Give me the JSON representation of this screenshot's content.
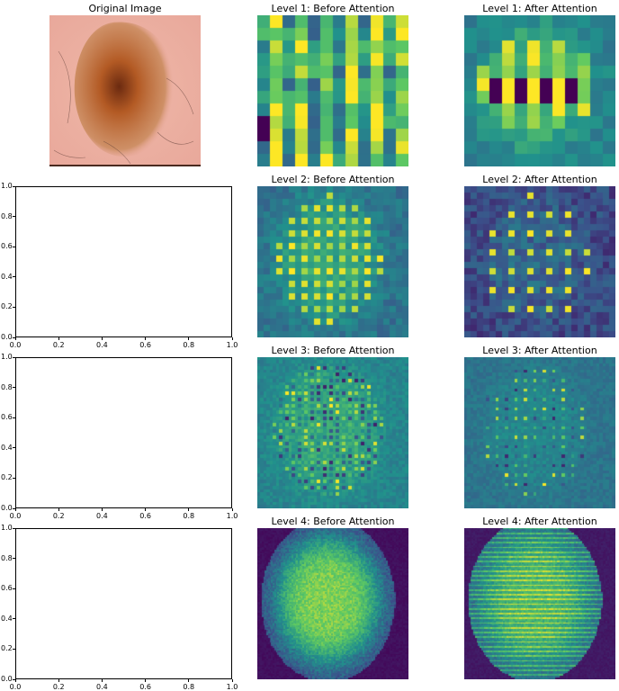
{
  "original_title": "Original Image",
  "heatmap_titles": [
    "Level 1: Before Attention",
    "Level 1: After Attention",
    "Level 2: Before Attention",
    "Level 2: After Attention",
    "Level 3: Before Attention",
    "Level 3: After Attention",
    "Level 4: Before Attention",
    "Level 4: After Attention"
  ],
  "colormap": [
    "#440154",
    "#3b528b",
    "#21918c",
    "#5ec962",
    "#fde725"
  ],
  "original_image": {
    "skin_color": "#e8a79a",
    "lesion_color": "#b35a24",
    "lesion_core_color": "#6b2a10"
  },
  "chart_data": [
    {
      "type": "heatmap",
      "name": "Level 1: Before Attention",
      "grid": [
        12,
        12
      ]
    },
    {
      "type": "heatmap",
      "name": "Level 1: After Attention",
      "grid": [
        12,
        12
      ]
    },
    {
      "type": "heatmap",
      "name": "Level 2: Before Attention",
      "grid": [
        24,
        24
      ]
    },
    {
      "type": "heatmap",
      "name": "Level 2: After Attention",
      "grid": [
        24,
        24
      ]
    },
    {
      "type": "heatmap",
      "name": "Level 3: Before Attention",
      "grid": [
        48,
        48
      ]
    },
    {
      "type": "heatmap",
      "name": "Level 3: After Attention",
      "grid": [
        48,
        48
      ]
    },
    {
      "type": "heatmap",
      "name": "Level 4: Before Attention",
      "grid": [
        96,
        96
      ]
    },
    {
      "type": "heatmap",
      "name": "Level 4: After Attention",
      "grid": [
        96,
        96
      ]
    },
    {
      "type": "scatter",
      "empty": true,
      "xlim": [
        0.0,
        1.0
      ],
      "ylim": [
        0.0,
        1.0
      ],
      "x_ticks": [
        "0.0",
        "0.2",
        "0.4",
        "0.6",
        "0.8",
        "1.0"
      ],
      "y_ticks": [
        "0.0",
        "0.2",
        "0.4",
        "0.6",
        "0.8",
        "1.0"
      ],
      "count": 3
    }
  ]
}
